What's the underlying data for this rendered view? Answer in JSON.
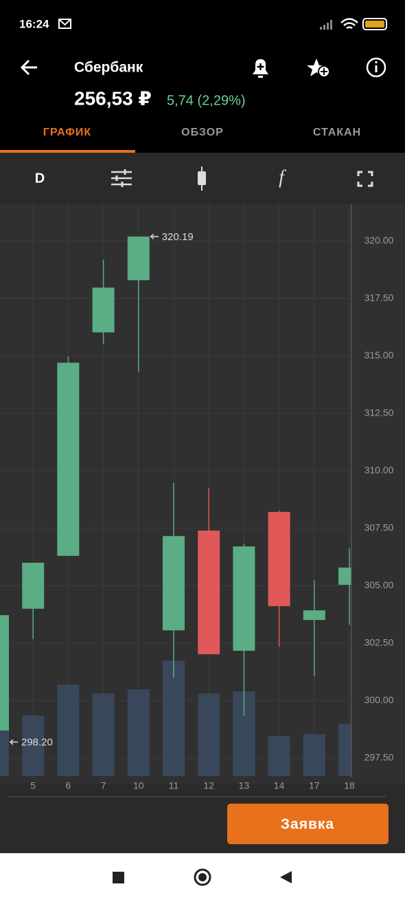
{
  "status_bar": {
    "time": "16:24"
  },
  "header": {
    "title": "Сбербанк",
    "price": "256,53 ₽",
    "change": "5,74 (2,29%)"
  },
  "tabs": [
    "ГРАФИК",
    "ОБЗОР",
    "СТАКАН"
  ],
  "toolbar": {
    "period": "D"
  },
  "chart_data": {
    "type": "candlestick",
    "categories": [
      null,
      "5",
      "6",
      "7",
      "10",
      "11",
      "12",
      "13",
      "14",
      "17",
      "18"
    ],
    "open": [
      298.7,
      304.0,
      306.3,
      316.02,
      318.29,
      303.06,
      307.4,
      302.17,
      308.21,
      303.51,
      305.04
    ],
    "high": [
      303.72,
      306.0,
      314.97,
      319.19,
      320.19,
      309.47,
      309.26,
      306.83,
      308.27,
      305.25,
      306.62
    ],
    "low": [
      298.2,
      302.67,
      306.3,
      315.51,
      314.31,
      301.0,
      302.02,
      299.35,
      302.35,
      301.06,
      303.3
    ],
    "close": [
      303.72,
      306.0,
      314.7,
      317.97,
      320.19,
      307.16,
      302.02,
      306.71,
      304.11,
      303.93,
      305.79
    ],
    "volume": [
      128,
      88,
      133,
      120,
      126,
      168,
      120,
      123,
      58,
      61,
      76
    ],
    "up_color": "#5aad85",
    "down_color": "#e05858",
    "volume_color": "#3b4b62",
    "ylim": [
      296.66,
      321.62
    ],
    "yticks": [
      {
        "value": 297.5,
        "label": "297.50"
      },
      {
        "value": 300,
        "label": "300.00"
      },
      {
        "value": 302.5,
        "label": "302.50"
      },
      {
        "value": 305,
        "label": "305.00"
      },
      {
        "value": 307.5,
        "label": "307.50"
      },
      {
        "value": 310,
        "label": "310.00"
      },
      {
        "value": 312.5,
        "label": "312.50"
      },
      {
        "value": 315,
        "label": "315.00"
      },
      {
        "value": 317.5,
        "label": "317.50"
      },
      {
        "value": 320,
        "label": "320.00"
      }
    ],
    "annotations": [
      "320.19",
      "298.20"
    ],
    "grid": true
  },
  "order_button": "Заявка"
}
